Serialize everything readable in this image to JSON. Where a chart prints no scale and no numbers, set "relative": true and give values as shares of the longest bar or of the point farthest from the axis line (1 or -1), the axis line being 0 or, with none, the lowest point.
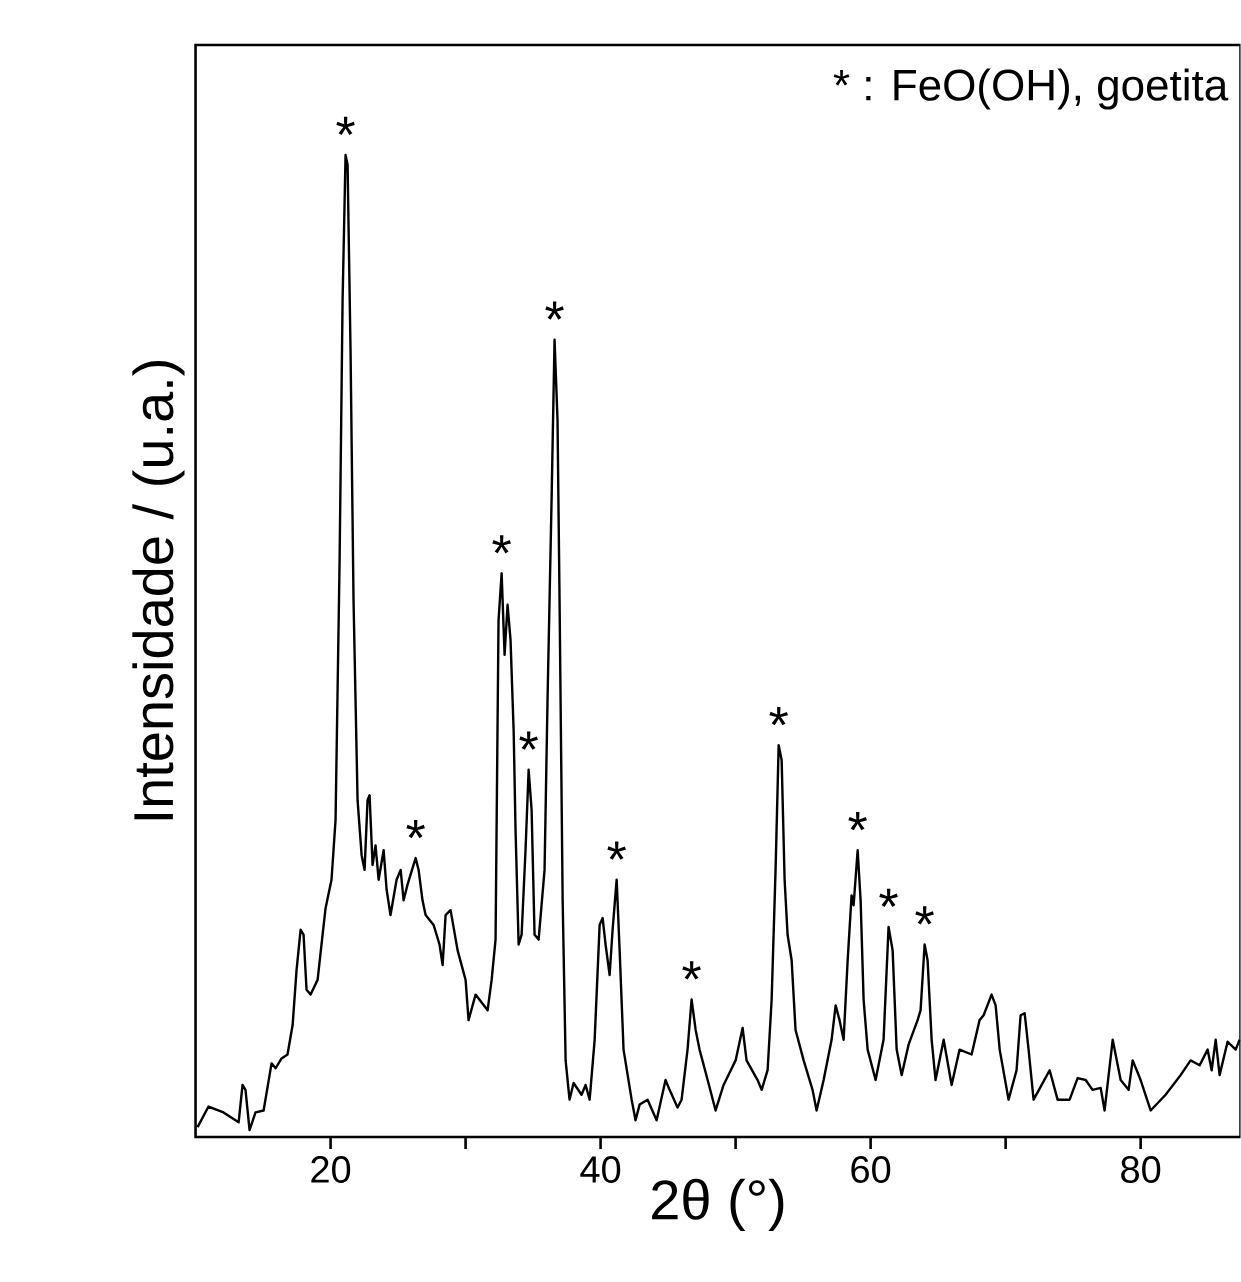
{
  "chart_data": {
    "type": "line",
    "xlabel": "2θ (°)",
    "ylabel": "Intensidade / (u.a.)",
    "relative": true,
    "xlim": [
      10,
      87.4
    ],
    "xticks": [
      20,
      {
        "value": 30,
        "label": null
      },
      40,
      {
        "value": 50,
        "label": null
      },
      60,
      {
        "value": 70,
        "label": null
      },
      80
    ],
    "series": [
      {
        "color": "#000000",
        "x": [
          10.15,
          10.96,
          12.07,
          13.19,
          13.48,
          13.7,
          14.0,
          14.44,
          15.04,
          15.63,
          15.93,
          16.37,
          16.81,
          17.19,
          17.48,
          17.78,
          18.0,
          18.22,
          18.52,
          19.04,
          19.41,
          19.63,
          20.07,
          20.37,
          20.67,
          20.89,
          21.11,
          21.26,
          21.48,
          21.7,
          22.0,
          22.3,
          22.52,
          22.74,
          22.89,
          23.11,
          23.33,
          23.56,
          23.93,
          24.15,
          24.44,
          24.89,
          25.19,
          25.41,
          25.7,
          26.3,
          26.52,
          26.81,
          27.04,
          27.63,
          28.07,
          28.3,
          28.52,
          28.89,
          29.41,
          30.0,
          30.22,
          30.74,
          31.63,
          31.93,
          32.22,
          32.44,
          32.67,
          32.89,
          33.11,
          33.33,
          33.56,
          33.7,
          33.93,
          34.15,
          34.44,
          34.67,
          34.89,
          35.11,
          35.41,
          35.85,
          36.07,
          36.37,
          36.59,
          36.81,
          36.96,
          37.19,
          37.41,
          37.7,
          38.0,
          38.59,
          38.89,
          39.19,
          39.56,
          39.93,
          40.15,
          40.37,
          40.67,
          40.89,
          41.19,
          41.41,
          41.7,
          42.3,
          42.59,
          42.89,
          43.48,
          44.15,
          44.81,
          45.11,
          45.7,
          46.0,
          46.44,
          46.74,
          47.04,
          47.33,
          47.93,
          48.52,
          49.11,
          50.0,
          50.52,
          50.81,
          51.63,
          51.93,
          52.37,
          52.67,
          52.96,
          53.19,
          53.41,
          53.63,
          53.85,
          54.15,
          54.44,
          55.04,
          55.7,
          56.0,
          56.52,
          57.11,
          57.41,
          57.7,
          58.0,
          58.3,
          58.59,
          58.74,
          59.04,
          59.26,
          59.48,
          59.78,
          60.37,
          60.96,
          61.33,
          61.63,
          61.93,
          62.3,
          62.81,
          63.48,
          63.7,
          64.0,
          64.22,
          64.52,
          64.81,
          65.41,
          66.0,
          66.59,
          67.48,
          68.07,
          68.37,
          68.96,
          69.26,
          69.56,
          70.22,
          70.81,
          71.11,
          71.41,
          71.7,
          72.07,
          72.67,
          73.26,
          73.85,
          74.74,
          75.33,
          75.93,
          76.44,
          77.04,
          77.33,
          77.93,
          78.52,
          79.11,
          79.41,
          80.0,
          80.74,
          81.85,
          82.96,
          83.7,
          84.37,
          84.96,
          85.26,
          85.56,
          85.85,
          86.44,
          87.04,
          87.33
        ],
        "values": [
          0.01,
          0.031,
          0.025,
          0.015,
          0.053,
          0.048,
          0.007,
          0.025,
          0.027,
          0.075,
          0.07,
          0.08,
          0.084,
          0.114,
          0.17,
          0.211,
          0.206,
          0.15,
          0.145,
          0.16,
          0.206,
          0.233,
          0.262,
          0.323,
          0.588,
          0.852,
          1.0,
          0.99,
          0.801,
          0.547,
          0.343,
          0.287,
          0.272,
          0.343,
          0.348,
          0.277,
          0.297,
          0.262,
          0.292,
          0.252,
          0.226,
          0.262,
          0.272,
          0.241,
          0.257,
          0.284,
          0.272,
          0.241,
          0.226,
          0.216,
          0.196,
          0.175,
          0.226,
          0.231,
          0.19,
          0.16,
          0.119,
          0.145,
          0.129,
          0.16,
          0.201,
          0.526,
          0.574,
          0.491,
          0.542,
          0.506,
          0.414,
          0.313,
          0.196,
          0.206,
          0.292,
          0.374,
          0.333,
          0.206,
          0.201,
          0.272,
          0.445,
          0.649,
          0.812,
          0.73,
          0.547,
          0.241,
          0.078,
          0.038,
          0.055,
          0.043,
          0.053,
          0.038,
          0.099,
          0.216,
          0.223,
          0.196,
          0.165,
          0.211,
          0.262,
          0.19,
          0.089,
          0.038,
          0.017,
          0.033,
          0.038,
          0.017,
          0.058,
          0.048,
          0.03,
          0.038,
          0.089,
          0.14,
          0.109,
          0.089,
          0.058,
          0.027,
          0.053,
          0.078,
          0.111,
          0.078,
          0.058,
          0.048,
          0.068,
          0.14,
          0.272,
          0.399,
          0.384,
          0.262,
          0.206,
          0.18,
          0.109,
          0.078,
          0.048,
          0.027,
          0.058,
          0.099,
          0.134,
          0.119,
          0.099,
          0.18,
          0.246,
          0.236,
          0.292,
          0.241,
          0.14,
          0.089,
          0.058,
          0.099,
          0.214,
          0.19,
          0.089,
          0.063,
          0.094,
          0.119,
          0.129,
          0.196,
          0.18,
          0.099,
          0.058,
          0.099,
          0.053,
          0.089,
          0.084,
          0.119,
          0.124,
          0.145,
          0.134,
          0.089,
          0.038,
          0.068,
          0.124,
          0.126,
          0.089,
          0.038,
          0.053,
          0.068,
          0.038,
          0.038,
          0.06,
          0.058,
          0.048,
          0.05,
          0.027,
          0.099,
          0.058,
          0.048,
          0.078,
          0.058,
          0.027,
          0.043,
          0.063,
          0.078,
          0.073,
          0.089,
          0.068,
          0.099,
          0.063,
          0.097,
          0.089,
          0.099
        ]
      }
    ],
    "annotations": [
      "* : FeO(OH), goetita",
      {
        "text": "*",
        "x": 21.11,
        "y": 1.0
      },
      {
        "text": "*",
        "x": 26.3,
        "y": 0.284
      },
      {
        "text": "*",
        "x": 32.67,
        "y": 0.574
      },
      {
        "text": "*",
        "x": 34.67,
        "y": 0.374
      },
      {
        "text": "*",
        "x": 36.59,
        "y": 0.812
      },
      {
        "text": "*",
        "x": 41.19,
        "y": 0.262
      },
      {
        "text": "*",
        "x": 46.74,
        "y": 0.14
      },
      {
        "text": "*",
        "x": 53.19,
        "y": 0.399
      },
      {
        "text": "*",
        "x": 59.04,
        "y": 0.292
      },
      {
        "text": "*",
        "x": 61.33,
        "y": 0.214
      },
      {
        "text": "*",
        "x": 64.0,
        "y": 0.196
      }
    ]
  }
}
